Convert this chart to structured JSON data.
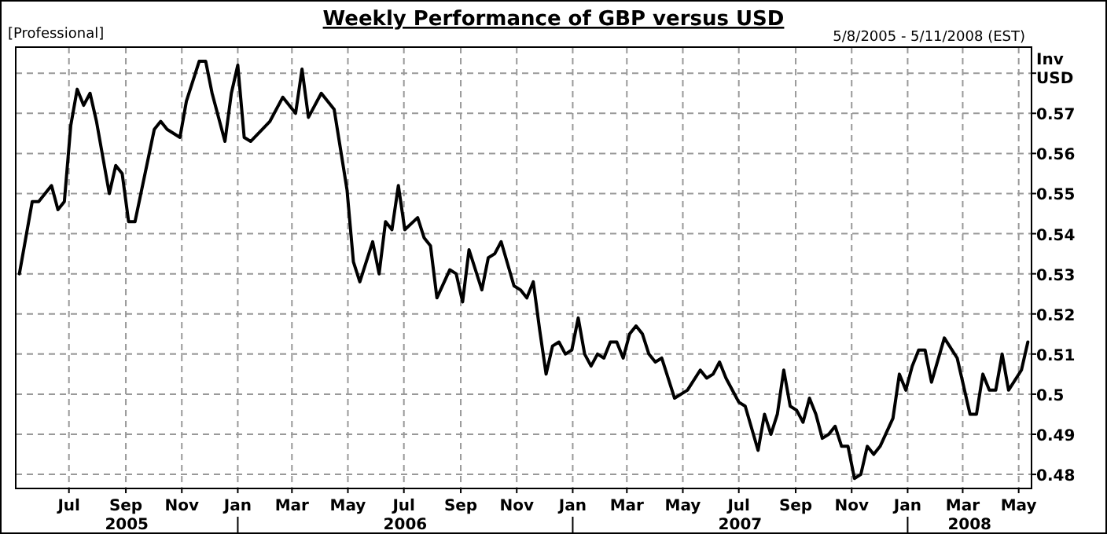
{
  "chart_data": {
    "type": "line",
    "title": "Weekly Performance of GBP versus USD",
    "subtitle": "5/8/2005 - 5/11/2008 (EST)",
    "ylabel": "Inv USD",
    "annotations": [
      "[Professional]",
      "2005",
      "2006",
      "2007",
      "2008"
    ],
    "x": [
      "2005-05-08",
      "2005-05-15",
      "2005-05-22",
      "2005-05-29",
      "2005-06-12",
      "2005-06-19",
      "2005-06-26",
      "2005-07-03",
      "2005-07-10",
      "2005-07-17",
      "2005-07-24",
      "2005-07-31",
      "2005-08-14",
      "2005-08-21",
      "2005-08-28",
      "2005-09-04",
      "2005-09-11",
      "2005-10-02",
      "2005-10-09",
      "2005-10-16",
      "2005-10-30",
      "2005-11-06",
      "2005-11-20",
      "2005-11-27",
      "2005-12-04",
      "2005-12-18",
      "2005-12-25",
      "2006-01-01",
      "2006-01-08",
      "2006-01-15",
      "2006-02-05",
      "2006-02-19",
      "2006-03-05",
      "2006-03-12",
      "2006-03-19",
      "2006-04-02",
      "2006-04-16",
      "2006-04-30",
      "2006-05-07",
      "2006-05-14",
      "2006-05-28",
      "2006-06-04",
      "2006-06-11",
      "2006-06-18",
      "2006-06-25",
      "2006-07-02",
      "2006-07-16",
      "2006-07-23",
      "2006-07-30",
      "2006-08-06",
      "2006-08-20",
      "2006-08-27",
      "2006-09-03",
      "2006-09-10",
      "2006-09-24",
      "2006-10-01",
      "2006-10-08",
      "2006-10-15",
      "2006-10-29",
      "2006-11-05",
      "2006-11-12",
      "2006-11-19",
      "2006-11-26",
      "2006-12-03",
      "2006-12-10",
      "2006-12-17",
      "2006-12-24",
      "2006-12-31",
      "2007-01-07",
      "2007-01-14",
      "2007-01-21",
      "2007-01-28",
      "2007-02-04",
      "2007-02-11",
      "2007-02-18",
      "2007-02-25",
      "2007-03-04",
      "2007-03-11",
      "2007-03-18",
      "2007-03-25",
      "2007-04-01",
      "2007-04-08",
      "2007-04-22",
      "2007-05-06",
      "2007-05-20",
      "2007-05-27",
      "2007-06-03",
      "2007-06-10",
      "2007-06-17",
      "2007-07-01",
      "2007-07-08",
      "2007-07-22",
      "2007-07-29",
      "2007-08-05",
      "2007-08-12",
      "2007-08-19",
      "2007-08-26",
      "2007-09-02",
      "2007-09-09",
      "2007-09-16",
      "2007-09-23",
      "2007-09-30",
      "2007-10-07",
      "2007-10-14",
      "2007-10-21",
      "2007-10-28",
      "2007-11-04",
      "2007-11-11",
      "2007-11-18",
      "2007-11-25",
      "2007-12-02",
      "2007-12-16",
      "2007-12-23",
      "2007-12-30",
      "2008-01-06",
      "2008-01-13",
      "2008-01-20",
      "2008-01-27",
      "2008-02-10",
      "2008-02-24",
      "2008-03-02",
      "2008-03-09",
      "2008-03-16",
      "2008-03-23",
      "2008-03-30",
      "2008-04-06",
      "2008-04-13",
      "2008-04-20",
      "2008-05-04",
      "2008-05-11"
    ],
    "series": [
      {
        "color": "#000000",
        "values": [
          0.53,
          0.539,
          0.548,
          0.548,
          0.552,
          0.546,
          0.548,
          0.567,
          0.576,
          0.572,
          0.575,
          0.568,
          0.55,
          0.557,
          0.555,
          0.543,
          0.543,
          0.566,
          0.568,
          0.566,
          0.564,
          0.573,
          0.583,
          0.583,
          0.575,
          0.563,
          0.575,
          0.582,
          0.564,
          0.563,
          0.568,
          0.574,
          0.57,
          0.581,
          0.569,
          0.575,
          0.571,
          0.551,
          0.533,
          0.528,
          0.538,
          0.53,
          0.543,
          0.541,
          0.552,
          0.541,
          0.544,
          0.539,
          0.537,
          0.524,
          0.531,
          0.53,
          0.523,
          0.536,
          0.526,
          0.534,
          0.535,
          0.538,
          0.527,
          0.526,
          0.524,
          0.528,
          0.516,
          0.505,
          0.512,
          0.513,
          0.51,
          0.511,
          0.519,
          0.51,
          0.507,
          0.51,
          0.509,
          0.513,
          0.513,
          0.509,
          0.515,
          0.517,
          0.515,
          0.51,
          0.508,
          0.509,
          0.499,
          0.501,
          0.506,
          0.504,
          0.505,
          0.508,
          0.504,
          0.498,
          0.497,
          0.486,
          0.495,
          0.49,
          0.495,
          0.506,
          0.497,
          0.496,
          0.493,
          0.499,
          0.495,
          0.489,
          0.49,
          0.492,
          0.487,
          0.487,
          0.479,
          0.48,
          0.487,
          0.485,
          0.487,
          0.494,
          0.505,
          0.501,
          0.507,
          0.511,
          0.511,
          0.503,
          0.514,
          0.509,
          0.502,
          0.495,
          0.495,
          0.505,
          0.501,
          0.501,
          0.51,
          0.501,
          0.506,
          0.513
        ]
      }
    ],
    "xlim": [
      "2005-05-04",
      "2008-05-15"
    ],
    "xticks": [
      {
        "value": "2005-07-01",
        "label": "Jul"
      },
      {
        "value": "2005-09-01",
        "label": "Sep"
      },
      {
        "value": "2005-11-01",
        "label": "Nov"
      },
      {
        "value": "2006-01-01",
        "label": "Jan"
      },
      {
        "value": "2006-03-01",
        "label": "Mar"
      },
      {
        "value": "2006-05-01",
        "label": "May"
      },
      {
        "value": "2006-07-01",
        "label": "Jul"
      },
      {
        "value": "2006-09-01",
        "label": "Sep"
      },
      {
        "value": "2006-11-01",
        "label": "Nov"
      },
      {
        "value": "2007-01-01",
        "label": "Jan"
      },
      {
        "value": "2007-03-01",
        "label": "Mar"
      },
      {
        "value": "2007-05-01",
        "label": "May"
      },
      {
        "value": "2007-07-01",
        "label": "Jul"
      },
      {
        "value": "2007-09-01",
        "label": "Sep"
      },
      {
        "value": "2007-11-01",
        "label": "Nov"
      },
      {
        "value": "2008-01-01",
        "label": "Jan"
      },
      {
        "value": "2008-03-01",
        "label": "Mar"
      },
      {
        "value": "2008-05-01",
        "label": "May"
      }
    ],
    "ylim": [
      0.4765,
      0.5865
    ],
    "yticks": [
      0.48,
      0.49,
      0.5,
      0.51,
      0.52,
      0.53,
      0.54,
      0.55,
      0.56,
      0.57,
      {
        "value": 0.58,
        "label": null
      }
    ],
    "grid": true,
    "marker": "none",
    "line_style": "solid"
  }
}
